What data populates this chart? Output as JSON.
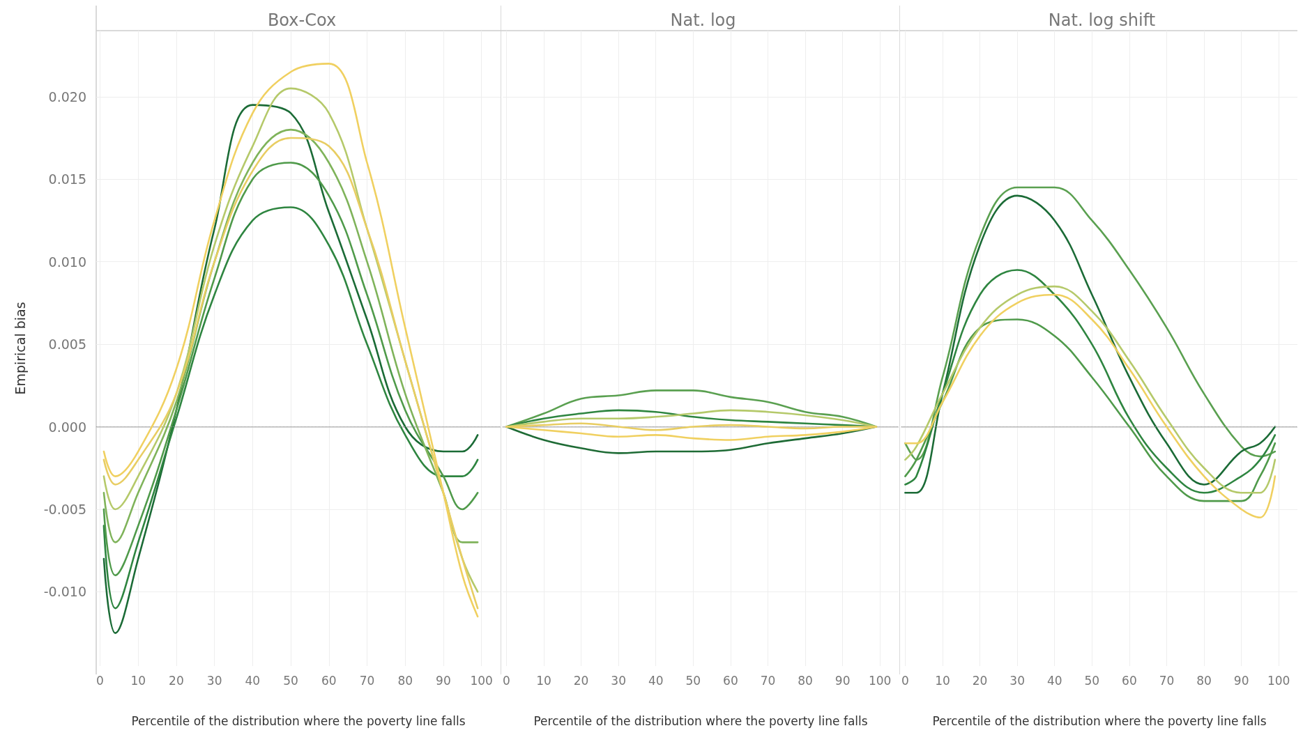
{
  "chart_data": [
    {
      "type": "line",
      "title": "Box-Cox",
      "xlabel": "Percentile of the distribution where the poverty line falls",
      "ylabel": "Empirical bias",
      "xlim": [
        -1,
        105
      ],
      "xticks": [
        0,
        10,
        20,
        30,
        40,
        50,
        60,
        70,
        80,
        90,
        100
      ],
      "ylim": [
        -0.0145,
        0.024
      ],
      "yticks": [
        {
          "value": -0.01,
          "label": "-0.010"
        },
        {
          "value": -0.005,
          "label": "-0.005"
        },
        {
          "value": 0,
          "label": "0.000"
        },
        {
          "value": 0.005,
          "label": "0.005"
        },
        {
          "value": 0.01,
          "label": "0.010"
        },
        {
          "value": 0.015,
          "label": "0.015"
        },
        {
          "value": 0.02,
          "label": "0.020"
        }
      ],
      "grid": true,
      "marker": "none",
      "line_style": "solid",
      "ref_lines": [
        {
          "axis": "y",
          "value": 0,
          "label": null,
          "line_style": "dotted",
          "color": "#999999"
        }
      ],
      "x": [
        1,
        4,
        10,
        20,
        30,
        40,
        50,
        60,
        70,
        80,
        90,
        95,
        99
      ],
      "series": [
        {
          "color": "#1b6b36",
          "values": [
            -0.008,
            -0.0125,
            -0.008,
            0.001,
            0.012,
            0.0195,
            0.019,
            0.013,
            0.0065,
            0.0,
            -0.0015,
            -0.0015,
            -0.0005
          ]
        },
        {
          "color": "#2e8540",
          "values": [
            -0.006,
            -0.011,
            -0.007,
            0.0005,
            0.008,
            0.0125,
            0.0133,
            0.011,
            0.005,
            -0.0005,
            -0.003,
            -0.003,
            -0.002
          ]
        },
        {
          "color": "#4f9a4a",
          "values": [
            -0.005,
            -0.009,
            -0.006,
            0.001,
            0.009,
            0.015,
            0.016,
            0.014,
            0.008,
            0.001,
            -0.003,
            -0.005,
            -0.004
          ]
        },
        {
          "color": "#7fb35a",
          "values": [
            -0.004,
            -0.007,
            -0.004,
            0.0015,
            0.01,
            0.016,
            0.018,
            0.016,
            0.01,
            0.002,
            -0.004,
            -0.007,
            -0.007
          ]
        },
        {
          "color": "#b5c96a",
          "values": [
            -0.003,
            -0.005,
            -0.003,
            0.002,
            0.011,
            0.017,
            0.0205,
            0.019,
            0.012,
            0.004,
            -0.004,
            -0.008,
            -0.01
          ]
        },
        {
          "color": "#e8cd62",
          "values": [
            -0.002,
            -0.0035,
            -0.002,
            0.002,
            0.01,
            0.0155,
            0.0175,
            0.017,
            0.012,
            0.004,
            -0.004,
            -0.008,
            -0.011
          ]
        },
        {
          "color": "#f0d060",
          "values": [
            -0.0015,
            -0.003,
            -0.0015,
            0.0035,
            0.0125,
            0.019,
            0.0215,
            0.022,
            0.016,
            0.006,
            -0.004,
            -0.009,
            -0.0115
          ]
        }
      ]
    },
    {
      "type": "line",
      "title": "Nat. log",
      "xlabel": "Percentile of the distribution where the poverty line falls",
      "xlim": [
        -1,
        105
      ],
      "xticks": [
        0,
        10,
        20,
        30,
        40,
        50,
        60,
        70,
        80,
        90,
        100
      ],
      "ylim": [
        -0.0145,
        0.024
      ],
      "yticks": [
        -0.01,
        -0.005,
        0,
        0.005,
        0.01,
        0.015,
        0.02
      ],
      "tick_labels": "x",
      "grid": true,
      "marker": "none",
      "line_style": "solid",
      "ref_lines": [
        {
          "axis": "y",
          "value": 0,
          "label": null,
          "line_style": "dotted",
          "color": "#999999"
        }
      ],
      "x": [
        0,
        10,
        20,
        30,
        40,
        50,
        60,
        70,
        80,
        90,
        99
      ],
      "series": [
        {
          "color": "#5aa050",
          "values": [
            0,
            0.0008,
            0.0017,
            0.0019,
            0.0022,
            0.0022,
            0.0018,
            0.0015,
            0.0009,
            0.0006,
            0
          ]
        },
        {
          "color": "#1e6b35",
          "values": [
            0,
            -0.0008,
            -0.0013,
            -0.0016,
            -0.0015,
            -0.0015,
            -0.0014,
            -0.001,
            -0.0007,
            -0.0004,
            0
          ]
        },
        {
          "color": "#2e8540",
          "values": [
            0,
            0.0005,
            0.0008,
            0.001,
            0.0009,
            0.0006,
            0.0004,
            0.0003,
            0.0002,
            0.0001,
            0
          ]
        },
        {
          "color": "#b5c96a",
          "values": [
            0,
            0.0003,
            0.0005,
            0.0005,
            0.0006,
            0.0008,
            0.001,
            0.0009,
            0.0007,
            0.0004,
            0
          ]
        },
        {
          "color": "#f0d060",
          "values": [
            0,
            -0.0002,
            -0.0004,
            -0.0006,
            -0.0005,
            -0.0007,
            -0.0008,
            -0.0006,
            -0.0005,
            -0.0003,
            0
          ]
        },
        {
          "color": "#e8cd62",
          "values": [
            0,
            0.0001,
            0.0002,
            0,
            -0.0002,
            0,
            0.0001,
            0,
            -0.0001,
            0,
            0
          ]
        }
      ]
    },
    {
      "type": "line",
      "title": "Nat. log shift",
      "xlabel": "Percentile of the distribution where the poverty line falls",
      "xlim": [
        -1,
        105
      ],
      "xticks": [
        0,
        10,
        20,
        30,
        40,
        50,
        60,
        70,
        80,
        90,
        100
      ],
      "ylim": [
        -0.0145,
        0.024
      ],
      "yticks": [
        -0.01,
        -0.005,
        0,
        0.005,
        0.01,
        0.015,
        0.02
      ],
      "tick_labels": "x",
      "grid": true,
      "marker": "none",
      "line_style": "solid",
      "ref_lines": [
        {
          "axis": "y",
          "value": 0,
          "label": null,
          "line_style": "dotted",
          "color": "#999999"
        }
      ],
      "x": [
        0,
        3,
        10,
        20,
        30,
        40,
        50,
        60,
        70,
        80,
        90,
        95,
        99
      ],
      "series": [
        {
          "color": "#5aa050",
          "values": [
            -0.001,
            -0.002,
            0.003,
            0.0115,
            0.0145,
            0.0145,
            0.0125,
            0.0095,
            0.006,
            0.002,
            -0.0012,
            -0.0018,
            -0.0015
          ]
        },
        {
          "color": "#1b6b36",
          "values": [
            -0.004,
            -0.004,
            0.002,
            0.011,
            0.014,
            0.0125,
            0.008,
            0.003,
            -0.001,
            -0.0035,
            -0.0015,
            -0.001,
            0
          ]
        },
        {
          "color": "#2e8540",
          "values": [
            -0.0035,
            -0.003,
            0.002,
            0.008,
            0.0095,
            0.008,
            0.005,
            0.0005,
            -0.0025,
            -0.004,
            -0.003,
            -0.002,
            -0.0005
          ]
        },
        {
          "color": "#4f9a4a",
          "values": [
            -0.003,
            -0.002,
            0.0015,
            0.006,
            0.0065,
            0.0055,
            0.003,
            0,
            -0.003,
            -0.0045,
            -0.0045,
            -0.003,
            -0.001
          ]
        },
        {
          "color": "#b5c96a",
          "values": [
            -0.002,
            -0.0012,
            0.002,
            0.006,
            0.008,
            0.0085,
            0.007,
            0.004,
            0.0005,
            -0.0025,
            -0.004,
            -0.004,
            -0.002
          ]
        },
        {
          "color": "#f0d060",
          "values": [
            -0.001,
            -0.001,
            0.0015,
            0.0055,
            0.0075,
            0.008,
            0.0065,
            0.0035,
            0,
            -0.003,
            -0.005,
            -0.0055,
            -0.003
          ]
        }
      ]
    }
  ]
}
